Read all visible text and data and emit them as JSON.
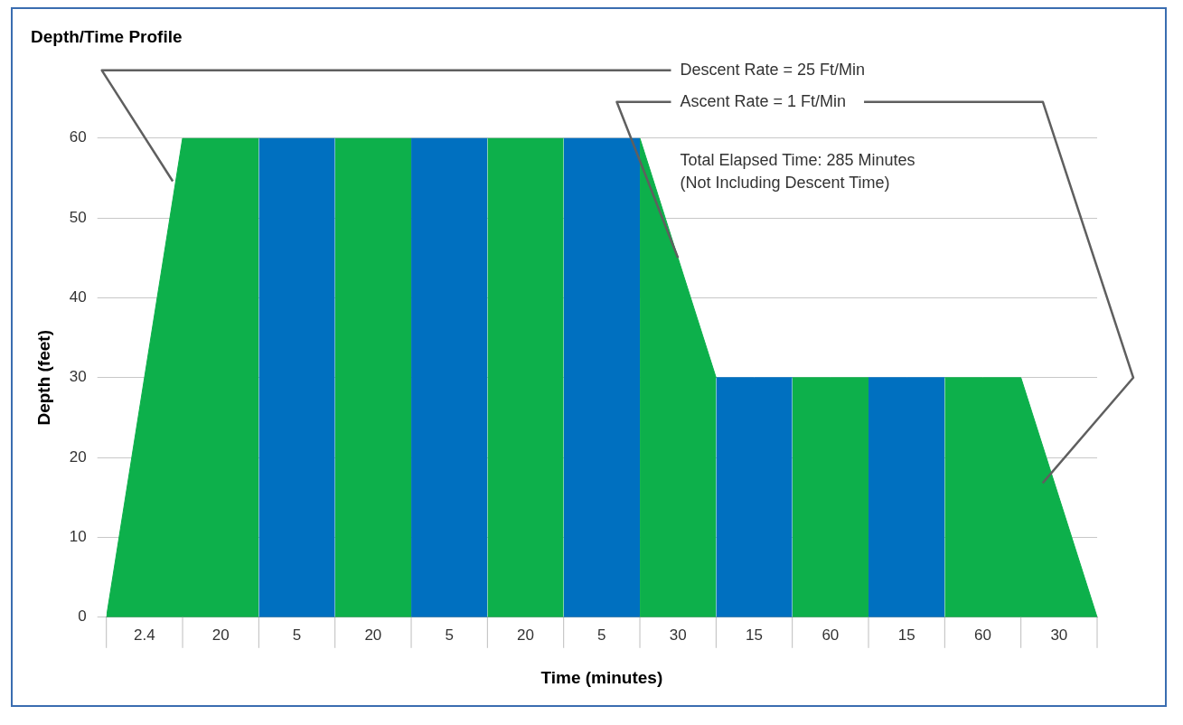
{
  "chart_data": {
    "type": "area",
    "title": "Depth/Time Profile",
    "xlabel": "Time (minutes)",
    "ylabel": "Depth (feet)",
    "categories": [
      null,
      "2.4",
      null,
      "20",
      null,
      "5",
      null,
      "20",
      null,
      "5",
      null,
      "20",
      null,
      "5",
      null,
      "30",
      null,
      "15",
      null,
      "60",
      null,
      "15",
      null,
      "60",
      null,
      "30",
      null
    ],
    "series": [
      {
        "color": "#0db04b",
        "values": [
          0,
          30,
          60,
          60,
          60,
          null,
          60,
          60,
          60,
          null,
          60,
          60,
          60,
          null,
          60,
          45,
          30,
          null,
          30,
          30,
          30,
          null,
          30,
          30,
          30,
          15,
          0
        ]
      },
      {
        "color": "#0070c0",
        "values": [
          null,
          null,
          null,
          null,
          60,
          60,
          60,
          null,
          60,
          60,
          60,
          null,
          60,
          60,
          60,
          null,
          30,
          30,
          30,
          null,
          30,
          30,
          30,
          null,
          null,
          null,
          null
        ]
      }
    ],
    "ylim": [
      0,
      60
    ],
    "yticks": [
      0,
      10,
      20,
      30,
      40,
      50,
      60
    ],
    "grid": "y",
    "legend": false,
    "annotations": [
      "Descent Rate = 25 Ft/Min",
      {
        "text": "Ascent Rate = 1 Ft/Min",
        "x": "30",
        "y": 45
      },
      "Total Elapsed Time: 285 Minutes",
      "(Not Including Descent Time)"
    ]
  }
}
